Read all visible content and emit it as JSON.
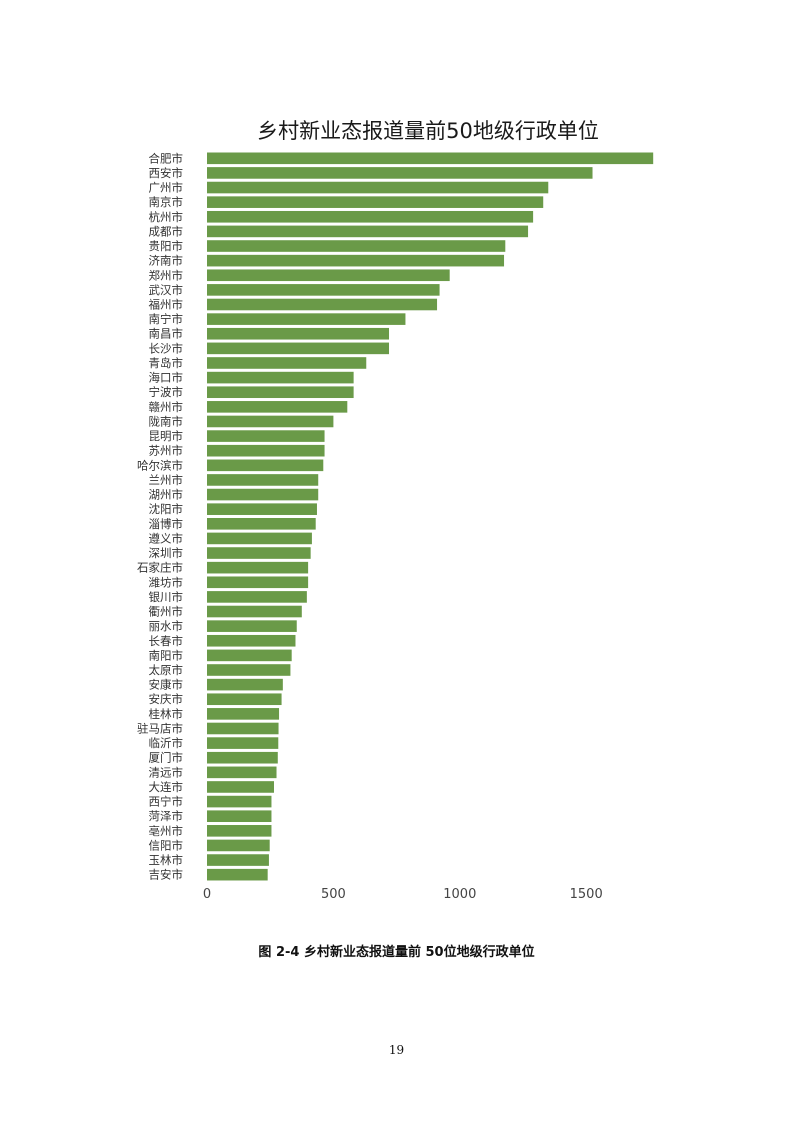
{
  "chart_data": {
    "type": "bar",
    "orientation": "horizontal",
    "title": "乡村新业态报道量前50地级行政单位",
    "xlabel": "",
    "ylabel": "",
    "xlim": [
      0,
      1800
    ],
    "xticks": [
      0,
      500,
      1000,
      1500
    ],
    "grid": false,
    "bar_color": "#6a9a48",
    "categories": [
      "合肥市",
      "西安市",
      "广州市",
      "南京市",
      "杭州市",
      "成都市",
      "贵阳市",
      "济南市",
      "郑州市",
      "武汉市",
      "福州市",
      "南宁市",
      "南昌市",
      "长沙市",
      "青岛市",
      "海口市",
      "宁波市",
      "赣州市",
      "陇南市",
      "昆明市",
      "苏州市",
      "哈尔滨市",
      "兰州市",
      "湖州市",
      "沈阳市",
      "淄博市",
      "遵义市",
      "深圳市",
      "石家庄市",
      "潍坊市",
      "银川市",
      "衢州市",
      "丽水市",
      "长春市",
      "南阳市",
      "太原市",
      "安康市",
      "安庆市",
      "桂林市",
      "驻马店市",
      "临沂市",
      "厦门市",
      "清远市",
      "大连市",
      "西宁市",
      "菏泽市",
      "亳州市",
      "信阳市",
      "玉林市",
      "吉安市"
    ],
    "values": [
      1765,
      1525,
      1350,
      1330,
      1290,
      1270,
      1180,
      1175,
      960,
      920,
      910,
      785,
      720,
      720,
      630,
      580,
      580,
      555,
      500,
      465,
      465,
      460,
      440,
      440,
      435,
      430,
      415,
      410,
      400,
      400,
      395,
      375,
      355,
      350,
      335,
      330,
      300,
      295,
      285,
      283,
      282,
      280,
      275,
      265,
      255,
      255,
      255,
      248,
      245,
      240
    ]
  },
  "caption": "图 2-4 乡村新业态报道量前 50位地级行政单位",
  "page_number": "19"
}
